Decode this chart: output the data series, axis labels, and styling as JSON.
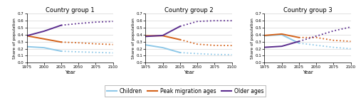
{
  "titles": [
    "Country group 1",
    "Country group 2",
    "Country group 3"
  ],
  "ylabel": "Share of population",
  "xlabel": "Year",
  "ylim": [
    0.0,
    0.7
  ],
  "yticks": [
    0.0,
    0.1,
    0.2,
    0.3,
    0.4,
    0.5,
    0.6,
    0.7
  ],
  "xticks": [
    1975,
    2000,
    2025,
    2050,
    2075,
    2100
  ],
  "group1": {
    "children_solid": [
      0.23,
      0.215,
      0.165
    ],
    "children_dotted": [
      0.155,
      0.148,
      0.14
    ],
    "peak_solid": [
      0.385,
      0.34,
      0.295
    ],
    "peak_dotted": [
      0.285,
      0.27,
      0.26
    ],
    "older_solid": [
      0.385,
      0.45,
      0.535
    ],
    "older_dotted": [
      0.56,
      0.58,
      0.59
    ]
  },
  "group2": {
    "children_solid": [
      0.255,
      0.215,
      0.145
    ],
    "children_dotted": [
      0.13,
      0.118,
      0.115
    ],
    "peak_solid": [
      0.385,
      0.385,
      0.33
    ],
    "peak_dotted": [
      0.265,
      0.248,
      0.245
    ],
    "older_solid": [
      0.375,
      0.39,
      0.52
    ],
    "older_dotted": [
      0.59,
      0.6,
      0.6
    ]
  },
  "group3": {
    "children_solid": [
      0.385,
      0.4,
      0.28
    ],
    "children_dotted": [
      0.25,
      0.22,
      0.2
    ],
    "peak_solid": [
      0.39,
      0.41,
      0.36
    ],
    "peak_dotted": [
      0.36,
      0.32,
      0.305
    ],
    "older_solid": [
      0.22,
      0.235,
      0.305
    ],
    "older_dotted": [
      0.38,
      0.455,
      0.51
    ]
  },
  "colors": {
    "children": "#8ec8e8",
    "peak": "#d4621a",
    "older": "#5b2d8e"
  },
  "legend_labels": [
    "Children",
    "Peak migration ages",
    "Older ages"
  ],
  "solid_lw": 1.4,
  "dotted_lw": 1.3
}
